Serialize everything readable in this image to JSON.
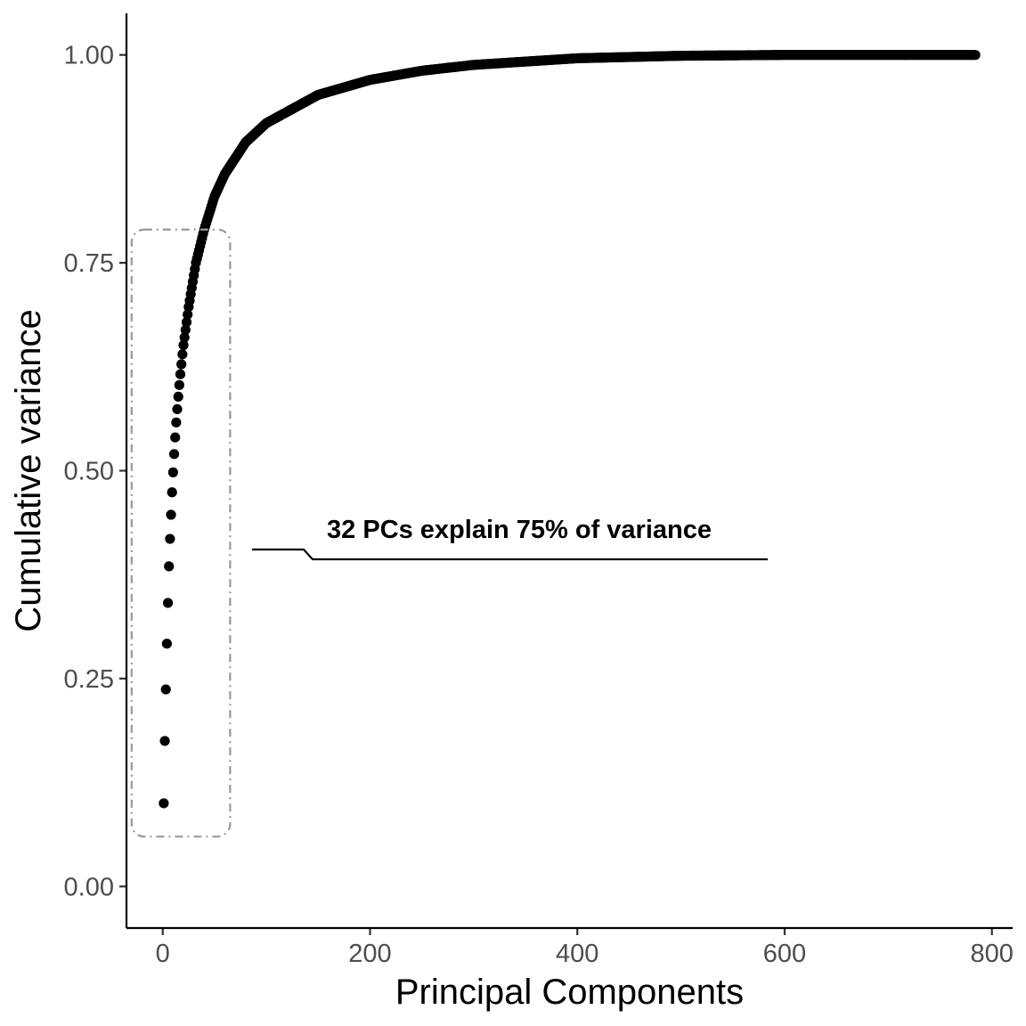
{
  "chart_data": {
    "type": "scatter",
    "title": "",
    "xlabel": "Principal Components",
    "ylabel": "Cumulative variance",
    "xlim": [
      -35,
      820
    ],
    "ylim": [
      -0.05,
      1.05
    ],
    "x_ticks": [
      0,
      200,
      400,
      600,
      800
    ],
    "x_tick_labels": [
      "0",
      "200",
      "400",
      "600",
      "800"
    ],
    "y_ticks": [
      0,
      0.25,
      0.5,
      0.75,
      1.0
    ],
    "y_tick_labels": [
      "0.00",
      "0.25",
      "0.50",
      "0.75",
      "1.00"
    ],
    "grid": false,
    "legend": "none",
    "n_points": 784,
    "series": [
      {
        "x": [
          1,
          2,
          3,
          4,
          5,
          6,
          7,
          8,
          9,
          10,
          11,
          12,
          13,
          14,
          15,
          16,
          17,
          18,
          19,
          20,
          25,
          30,
          32,
          40,
          50,
          60,
          80,
          100,
          150,
          200,
          250,
          300,
          400,
          500,
          600,
          700,
          784
        ],
        "y": [
          0.1,
          0.175,
          0.237,
          0.292,
          0.341,
          0.385,
          0.418,
          0.447,
          0.474,
          0.498,
          0.52,
          0.54,
          0.558,
          0.574,
          0.589,
          0.603,
          0.616,
          0.628,
          0.64,
          0.651,
          0.697,
          0.735,
          0.75,
          0.79,
          0.83,
          0.857,
          0.895,
          0.918,
          0.952,
          0.97,
          0.981,
          0.988,
          0.996,
          0.999,
          1.0,
          1.0,
          1.0
        ]
      }
    ],
    "annotation": {
      "label": "32 PCs explain 75% of variance",
      "highlight_region": {
        "x": [
          -30,
          65
        ],
        "y": [
          0.06,
          0.79
        ]
      }
    },
    "colors": {
      "points": "#000000",
      "highlight_box": "#999999",
      "tick_labels": "#4d4d4d"
    }
  }
}
